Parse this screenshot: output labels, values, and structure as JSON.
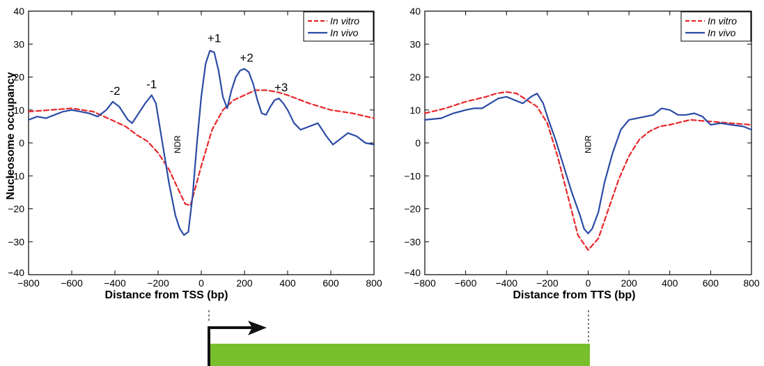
{
  "chart_data": [
    {
      "type": "line",
      "title": "",
      "xlabel": "Distance from TSS (bp)",
      "ylabel": "Nucleosome occupancy",
      "xlim": [
        -800,
        800
      ],
      "ylim": [
        -40,
        40
      ],
      "xticks": [
        "-800",
        "-600",
        "-400",
        "-200",
        "0",
        "200",
        "400",
        "600",
        "800"
      ],
      "yticks": [
        "40",
        "30",
        "20",
        "10",
        "0",
        "-10",
        "-20",
        "-30",
        "-40"
      ],
      "legend_position": "top-right",
      "series": [
        {
          "name": "In vitro",
          "color": "#e8262a",
          "dash": "dashed",
          "x": [
            -800,
            -700,
            -600,
            -500,
            -450,
            -400,
            -350,
            -300,
            -250,
            -200,
            -150,
            -100,
            -75,
            -50,
            0,
            50,
            100,
            150,
            200,
            250,
            300,
            350,
            400,
            500,
            600,
            700,
            800
          ],
          "y": [
            9.5,
            10,
            10.5,
            9.5,
            8,
            6.5,
            5,
            2.5,
            0.5,
            -3,
            -8,
            -15,
            -18.5,
            -19,
            -7,
            4,
            10,
            13,
            14.5,
            16,
            16,
            15.5,
            14.5,
            12,
            10,
            9,
            7.5
          ]
        },
        {
          "name": "In vivo",
          "color": "#2a4aa5",
          "dash": "solid",
          "x": [
            -800,
            -760,
            -720,
            -680,
            -640,
            -600,
            -560,
            -520,
            -480,
            -440,
            -410,
            -380,
            -340,
            -320,
            -300,
            -260,
            -230,
            -210,
            -180,
            -150,
            -120,
            -100,
            -80,
            -60,
            -40,
            -20,
            0,
            20,
            40,
            60,
            80,
            100,
            120,
            140,
            160,
            180,
            200,
            220,
            240,
            260,
            280,
            300,
            320,
            340,
            360,
            380,
            400,
            430,
            460,
            500,
            540,
            580,
            610,
            640,
            680,
            720,
            760,
            800
          ],
          "y": [
            7,
            8,
            7.5,
            8.5,
            9.5,
            10,
            9.5,
            9,
            8,
            10,
            12.5,
            11,
            7,
            6,
            8,
            12,
            14.5,
            12,
            0,
            -12,
            -22,
            -26,
            -28,
            -27,
            -16,
            0,
            14,
            24,
            28,
            27.5,
            22,
            14,
            10.5,
            16,
            20,
            22,
            22.5,
            21.5,
            18,
            13,
            9,
            8.5,
            11,
            13,
            13.5,
            12,
            10,
            6,
            4,
            5,
            6,
            2,
            -0.5,
            1,
            3,
            2,
            0,
            -0.5
          ]
        }
      ],
      "annotations": [
        {
          "text": "-2",
          "x": -400,
          "y": 12.5
        },
        {
          "text": "-1",
          "x": -230,
          "y": 14.5
        },
        {
          "text": "+1",
          "x": 60,
          "y": 28.5
        },
        {
          "text": "+2",
          "x": 210,
          "y": 22.5
        },
        {
          "text": "+3",
          "x": 370,
          "y": 13.5
        },
        {
          "text": "NDR",
          "x": -110,
          "y": 0
        }
      ]
    },
    {
      "type": "line",
      "title": "",
      "xlabel": "Distance from TTS (bp)",
      "ylabel": "",
      "xlim": [
        -800,
        800
      ],
      "ylim": [
        -40,
        40
      ],
      "xticks": [
        "-800",
        "-600",
        "-400",
        "-200",
        "0",
        "200",
        "400",
        "600",
        "800"
      ],
      "yticks": [
        "40",
        "30",
        "20",
        "10",
        "0",
        "-10",
        "-20",
        "-30",
        "-40"
      ],
      "legend_position": "top-right",
      "series": [
        {
          "name": "In vitro",
          "color": "#e8262a",
          "dash": "dashed",
          "x": [
            -800,
            -700,
            -600,
            -500,
            -450,
            -400,
            -350,
            -300,
            -250,
            -200,
            -150,
            -100,
            -50,
            0,
            50,
            100,
            150,
            200,
            250,
            300,
            350,
            400,
            500,
            600,
            700,
            800
          ],
          "y": [
            9,
            10.5,
            12.5,
            14,
            15,
            15.5,
            15,
            13,
            11,
            6,
            -4,
            -16,
            -28,
            -32.5,
            -29,
            -20,
            -11,
            -4,
            1,
            3.5,
            5,
            5.5,
            7,
            6.5,
            6,
            5.5
          ]
        },
        {
          "name": "In vivo",
          "color": "#2a4aa5",
          "dash": "solid",
          "x": [
            -800,
            -720,
            -660,
            -600,
            -560,
            -520,
            -480,
            -440,
            -400,
            -360,
            -320,
            -280,
            -250,
            -220,
            -200,
            -160,
            -120,
            -80,
            -40,
            -20,
            0,
            20,
            50,
            80,
            120,
            160,
            200,
            240,
            280,
            320,
            360,
            400,
            440,
            480,
            520,
            560,
            600,
            650,
            700,
            760,
            800
          ],
          "y": [
            7,
            7.5,
            9,
            10,
            10.5,
            10.5,
            12,
            13.5,
            14,
            13,
            12,
            14,
            15,
            12,
            8,
            1,
            -7,
            -15,
            -22,
            -26,
            -27.5,
            -26,
            -21,
            -12,
            -3,
            4,
            7,
            7.5,
            8,
            8.5,
            10.5,
            10,
            8.5,
            8.5,
            9,
            8,
            5.5,
            6,
            5.5,
            5,
            4
          ]
        }
      ],
      "annotations": [
        {
          "text": "NDR",
          "x": 0,
          "y": 0
        }
      ]
    }
  ],
  "gene_diagram": {
    "bar_color": "#77bf2d",
    "arrow_color": "#111111"
  }
}
